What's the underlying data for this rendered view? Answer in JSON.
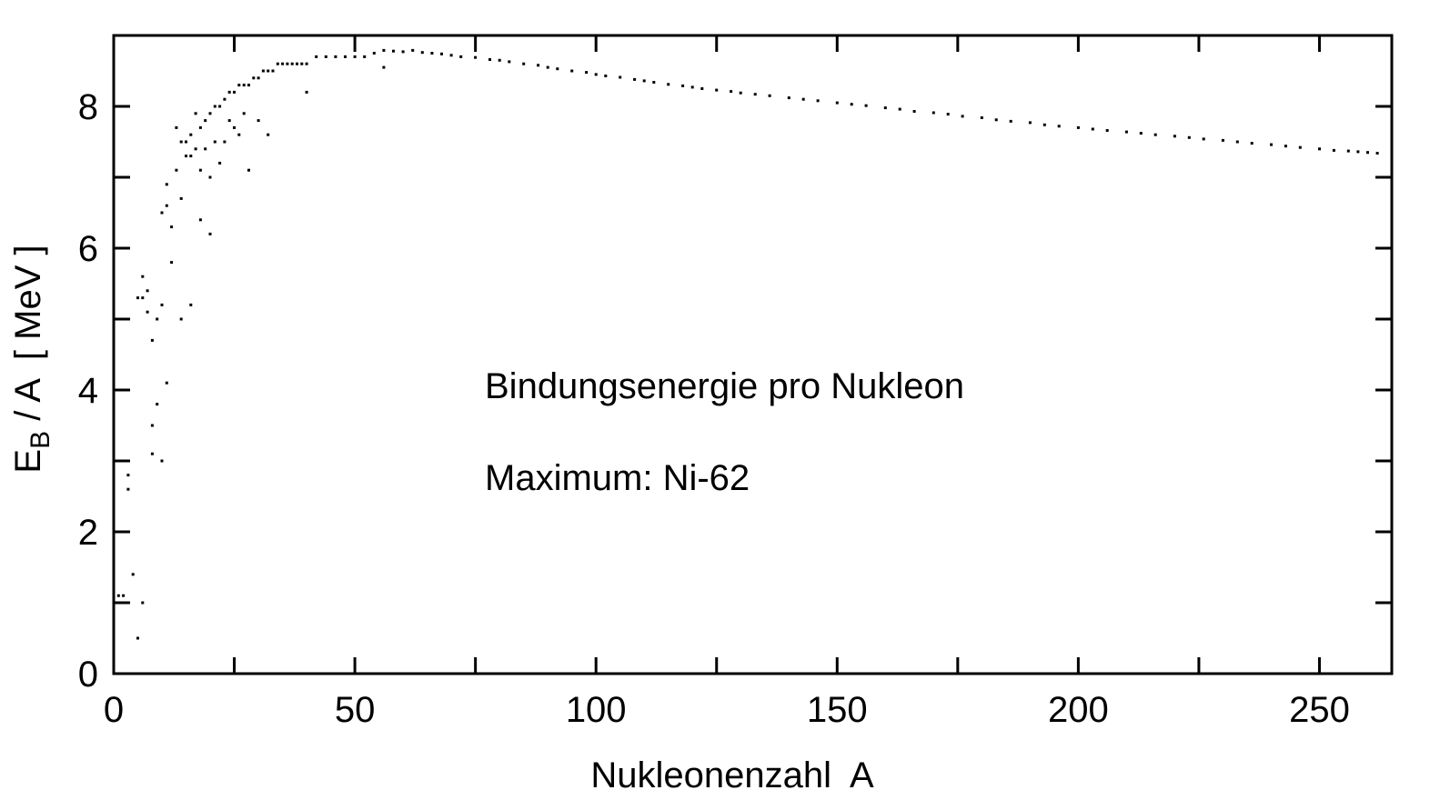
{
  "chart_data": {
    "type": "scatter",
    "title": "",
    "xlabel": "Nukleonenzahl  A",
    "ylabel": {
      "main": "E",
      "sub": "B",
      "rest": " / A  [ MeV ]"
    },
    "xlim": [
      0,
      265
    ],
    "ylim": [
      0,
      9
    ],
    "xticks": [
      0,
      50,
      100,
      150,
      200,
      250
    ],
    "yticks": [
      0,
      2,
      4,
      6,
      8
    ],
    "grid": false,
    "annotations": [
      "Bindungsenergie pro Nukleon",
      "Maximum: Ni-62"
    ],
    "series": [
      {
        "color": "#000000",
        "x": [
          1,
          2,
          3,
          3,
          4,
          5,
          5,
          6,
          6,
          6,
          7,
          7,
          8,
          8,
          8,
          9,
          9,
          10,
          10,
          10,
          11,
          11,
          11,
          12,
          12,
          13,
          13,
          14,
          14,
          14,
          15,
          15,
          16,
          16,
          16,
          17,
          17,
          18,
          18,
          18,
          19,
          19,
          20,
          20,
          20,
          21,
          21,
          22,
          22,
          23,
          23,
          24,
          24,
          25,
          25,
          26,
          26,
          27,
          27,
          28,
          28,
          29,
          30,
          30,
          31,
          32,
          32,
          33,
          34,
          35,
          36,
          37,
          38,
          39,
          40,
          40,
          42,
          44,
          46,
          48,
          50,
          52,
          54,
          56,
          56,
          58,
          60,
          62,
          64,
          66,
          68,
          70,
          72,
          75,
          78,
          80,
          82,
          85,
          88,
          90,
          92,
          95,
          98,
          100,
          102,
          105,
          108,
          110,
          112,
          115,
          118,
          120,
          122,
          125,
          128,
          130,
          133,
          136,
          140,
          143,
          146,
          150,
          153,
          156,
          160,
          163,
          166,
          170,
          173,
          176,
          180,
          183,
          186,
          190,
          193,
          196,
          200,
          203,
          206,
          210,
          213,
          216,
          220,
          223,
          226,
          230,
          233,
          236,
          240,
          243,
          246,
          250,
          253,
          256,
          258,
          260,
          262
        ],
        "y": [
          1.1,
          1.1,
          2.6,
          2.8,
          1.4,
          0.5,
          5.3,
          1.0,
          5.3,
          5.6,
          5.1,
          5.4,
          3.1,
          3.5,
          4.7,
          3.8,
          5.0,
          3.0,
          6.5,
          5.2,
          4.1,
          6.6,
          6.9,
          5.8,
          6.3,
          7.7,
          7.1,
          7.5,
          6.7,
          5.0,
          7.3,
          7.5,
          7.6,
          7.3,
          5.2,
          7.9,
          7.4,
          7.7,
          7.1,
          6.4,
          7.8,
          7.4,
          7.9,
          7.0,
          6.2,
          8.0,
          7.5,
          8.0,
          7.2,
          8.1,
          7.5,
          8.2,
          7.8,
          8.2,
          7.7,
          8.3,
          7.6,
          8.3,
          7.9,
          8.3,
          7.1,
          8.4,
          8.4,
          7.8,
          8.5,
          8.5,
          7.6,
          8.5,
          8.6,
          8.6,
          8.6,
          8.6,
          8.6,
          8.6,
          8.6,
          8.2,
          8.7,
          8.7,
          8.7,
          8.7,
          8.7,
          8.7,
          8.75,
          8.79,
          8.55,
          8.78,
          8.77,
          8.79,
          8.76,
          8.75,
          8.74,
          8.72,
          8.7,
          8.69,
          8.66,
          8.65,
          8.63,
          8.6,
          8.58,
          8.55,
          8.53,
          8.5,
          8.48,
          8.45,
          8.43,
          8.41,
          8.38,
          8.36,
          8.34,
          8.31,
          8.29,
          8.27,
          8.25,
          8.23,
          8.21,
          8.19,
          8.17,
          8.15,
          8.12,
          8.1,
          8.08,
          8.05,
          8.03,
          8.01,
          7.98,
          7.96,
          7.93,
          7.91,
          7.89,
          7.86,
          7.84,
          7.81,
          7.79,
          7.77,
          7.74,
          7.72,
          7.7,
          7.68,
          7.66,
          7.64,
          7.62,
          7.6,
          7.58,
          7.56,
          7.54,
          7.52,
          7.5,
          7.48,
          7.46,
          7.44,
          7.42,
          7.4,
          7.38,
          7.37,
          7.36,
          7.35,
          7.34
        ]
      }
    ]
  }
}
